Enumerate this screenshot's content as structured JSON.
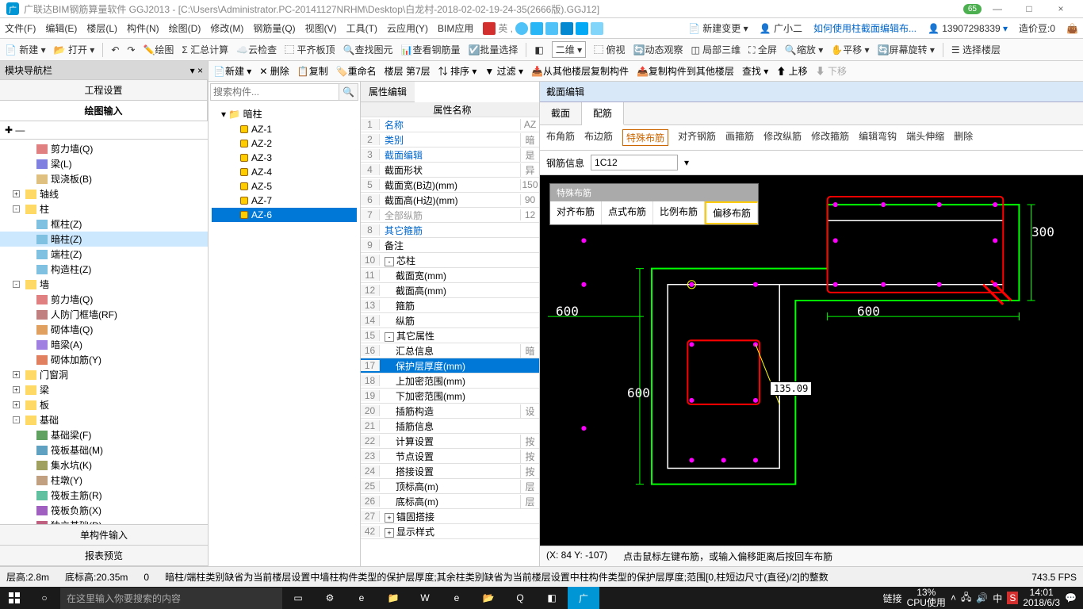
{
  "title": "广联达BIM钢筋算量软件 GGJ2013 - [C:\\Users\\Administrator.PC-20141127NRHM\\Desktop\\白龙村-2018-02-02-19-24-35(2666版).GGJ12]",
  "badge": "65",
  "winbtns": [
    "—",
    "□",
    "×"
  ],
  "menu": [
    "文件(F)",
    "编辑(E)",
    "楼层(L)",
    "构件(N)",
    "绘图(D)",
    "修改(M)",
    "钢筋量(Q)",
    "视图(V)",
    "工具(T)",
    "云应用(Y)",
    "BIM应用"
  ],
  "menuRight": {
    "changeLabel": "新建变更",
    "user": "广小二",
    "helpLink": "如何使用柱截面编辑布...",
    "phone": "13907298339",
    "coinLabel": "造价豆:0"
  },
  "tb1": [
    "新建",
    "打开",
    "",
    "绘图",
    "汇总计算",
    "云检查",
    "平齐板顶",
    "查找图元",
    "查看钢筋量",
    "批量选择",
    "",
    "二维",
    "俯视",
    "动态观察",
    "局部三维",
    "全屏",
    "缩放",
    "平移",
    "屏幕旋转",
    "",
    "选择楼层"
  ],
  "tb2": [
    "新建",
    "删除",
    "复制",
    "重命名",
    "楼层 第7层",
    "排序",
    "过滤",
    "从其他楼层复制构件",
    "复制构件到其他楼层",
    "查找",
    "上移",
    "下移"
  ],
  "leftPanel": {
    "header": "模块导航栏",
    "tabs": [
      "工程设置",
      "绘图输入"
    ],
    "tree": [
      {
        "l": 2,
        "t": "剪力墙(Q)",
        "c": "#e08080"
      },
      {
        "l": 2,
        "t": "梁(L)",
        "c": "#8080e0"
      },
      {
        "l": 2,
        "t": "现浇板(B)",
        "c": "#e0c080"
      },
      {
        "l": 1,
        "t": "轴线",
        "exp": "+"
      },
      {
        "l": 1,
        "t": "柱",
        "exp": "-"
      },
      {
        "l": 2,
        "t": "框柱(Z)",
        "c": "#80c0e0"
      },
      {
        "l": 2,
        "t": "暗柱(Z)",
        "c": "#80c0e0",
        "sel": true
      },
      {
        "l": 2,
        "t": "端柱(Z)",
        "c": "#80c0e0"
      },
      {
        "l": 2,
        "t": "构造柱(Z)",
        "c": "#80c0e0"
      },
      {
        "l": 1,
        "t": "墙",
        "exp": "-"
      },
      {
        "l": 2,
        "t": "剪力墙(Q)",
        "c": "#e08080"
      },
      {
        "l": 2,
        "t": "人防门框墙(RF)",
        "c": "#c08080"
      },
      {
        "l": 2,
        "t": "砌体墙(Q)",
        "c": "#e0a060"
      },
      {
        "l": 2,
        "t": "暗梁(A)",
        "c": "#a080e0"
      },
      {
        "l": 2,
        "t": "砌体加筋(Y)",
        "c": "#e08060"
      },
      {
        "l": 1,
        "t": "门窗洞",
        "exp": "+"
      },
      {
        "l": 1,
        "t": "梁",
        "exp": "+"
      },
      {
        "l": 1,
        "t": "板",
        "exp": "+"
      },
      {
        "l": 1,
        "t": "基础",
        "exp": "-"
      },
      {
        "l": 2,
        "t": "基础梁(F)",
        "c": "#60a060"
      },
      {
        "l": 2,
        "t": "筏板基础(M)",
        "c": "#60a0c0"
      },
      {
        "l": 2,
        "t": "集水坑(K)",
        "c": "#a0a060"
      },
      {
        "l": 2,
        "t": "柱墩(Y)",
        "c": "#c0a080"
      },
      {
        "l": 2,
        "t": "筏板主筋(R)",
        "c": "#60c0a0"
      },
      {
        "l": 2,
        "t": "筏板负筋(X)",
        "c": "#a060c0"
      },
      {
        "l": 2,
        "t": "独立基础(D)",
        "c": "#c06080"
      },
      {
        "l": 2,
        "t": "条形基础(T)",
        "c": "#6080c0"
      },
      {
        "l": 2,
        "t": "桩承台(V)",
        "c": "#80c060"
      },
      {
        "l": 2,
        "t": "承台梁(W)",
        "c": "#c080a0"
      },
      {
        "l": 2,
        "t": "桩(U)",
        "c": "#a0c080"
      }
    ],
    "footTabs": [
      "单构件输入",
      "报表预览"
    ]
  },
  "mid": {
    "searchPlaceholder": "搜索构件...",
    "root": "暗柱",
    "items": [
      "AZ-1",
      "AZ-2",
      "AZ-3",
      "AZ-4",
      "AZ-5",
      "AZ-7",
      "AZ-6"
    ],
    "selIdx": 6
  },
  "prop": {
    "tab": "属性编辑",
    "header": "属性名称",
    "rows": [
      {
        "n": 1,
        "name": "名称",
        "val": "AZ",
        "blue": true
      },
      {
        "n": 2,
        "name": "类别",
        "val": "暗",
        "blue": true
      },
      {
        "n": 3,
        "name": "截面编辑",
        "val": "是",
        "blue": true
      },
      {
        "n": 4,
        "name": "截面形状",
        "val": "异"
      },
      {
        "n": 5,
        "name": "截面宽(B边)(mm)",
        "val": "150"
      },
      {
        "n": 6,
        "name": "截面高(H边)(mm)",
        "val": "90"
      },
      {
        "n": 7,
        "name": "全部纵筋",
        "val": "12",
        "gray": true
      },
      {
        "n": 8,
        "name": "其它箍筋",
        "blue": true
      },
      {
        "n": 9,
        "name": "备注"
      },
      {
        "n": 10,
        "name": "芯柱",
        "exp": "-"
      },
      {
        "n": 11,
        "name": "截面宽(mm)",
        "ind": 1
      },
      {
        "n": 12,
        "name": "截面高(mm)",
        "ind": 1
      },
      {
        "n": 13,
        "name": "箍筋",
        "ind": 1
      },
      {
        "n": 14,
        "name": "纵筋",
        "ind": 1
      },
      {
        "n": 15,
        "name": "其它属性",
        "exp": "-"
      },
      {
        "n": 16,
        "name": "汇总信息",
        "val": "暗",
        "ind": 1
      },
      {
        "n": 17,
        "name": "保护层厚度(mm)",
        "sel": true,
        "ind": 1
      },
      {
        "n": 18,
        "name": "上加密范围(mm)",
        "ind": 1
      },
      {
        "n": 19,
        "name": "下加密范围(mm)",
        "ind": 1
      },
      {
        "n": 20,
        "name": "插筋构造",
        "val": "设",
        "ind": 1
      },
      {
        "n": 21,
        "name": "插筋信息",
        "ind": 1
      },
      {
        "n": 22,
        "name": "计算设置",
        "val": "按",
        "ind": 1
      },
      {
        "n": 23,
        "name": "节点设置",
        "val": "按",
        "ind": 1
      },
      {
        "n": 24,
        "name": "搭接设置",
        "val": "按",
        "ind": 1
      },
      {
        "n": 25,
        "name": "顶标高(m)",
        "val": "层",
        "ind": 1
      },
      {
        "n": 26,
        "name": "底标高(m)",
        "val": "层",
        "ind": 1
      },
      {
        "n": 27,
        "name": "锚固搭接",
        "exp": "+"
      },
      {
        "n": 42,
        "name": "显示样式",
        "exp": "+"
      }
    ]
  },
  "canvas": {
    "title": "截面编辑",
    "tabs": [
      "截面",
      "配筋"
    ],
    "activeTab": 1,
    "tb": [
      "布角筋",
      "布边筋",
      "特殊布筋",
      "对齐钢筋",
      "画箍筋",
      "修改纵筋",
      "修改箍筋",
      "编辑弯钩",
      "端头伸缩",
      "删除"
    ],
    "tbSel": 2,
    "steelLabel": "钢筋信息",
    "steelVal": "1C12",
    "popup": {
      "title": "特殊布筋",
      "items": [
        "对齐布筋",
        "点式布筋",
        "比例布筋",
        "偏移布筋"
      ],
      "hl": 3
    },
    "dims": {
      "d1": "300",
      "d2": "600",
      "d3": "600",
      "d4": "600"
    },
    "measure": "135.09",
    "coord": "(X: 84 Y: -107)",
    "hint": "点击鼠标左键布筋，或输入偏移距离后按回车布筋",
    "colors": {
      "bg": "#000000",
      "outline": "#00ff00",
      "stirrup": "#ff0000",
      "rebar": "#ff00ff",
      "cursor": "#ffff00",
      "text": "#ffffff"
    }
  },
  "status": {
    "layerH": "层高:2.8m",
    "botH": "底标高:20.35m",
    "zero": "0",
    "long": "暗柱/端柱类别缺省为当前楼层设置中墙柱构件类型的保护层厚度;其余柱类别缺省为当前楼层设置中柱构件类型的保护层厚度;范围[0,柱短边尺寸(直径)/2]的整数",
    "fps": "743.5 FPS"
  },
  "taskbar": {
    "search": "在这里输入你要搜索的内容",
    "link": "链接",
    "cpu": "13%",
    "cpuLabel": "CPU使用",
    "time": "14:01",
    "date": "2018/6/3"
  }
}
